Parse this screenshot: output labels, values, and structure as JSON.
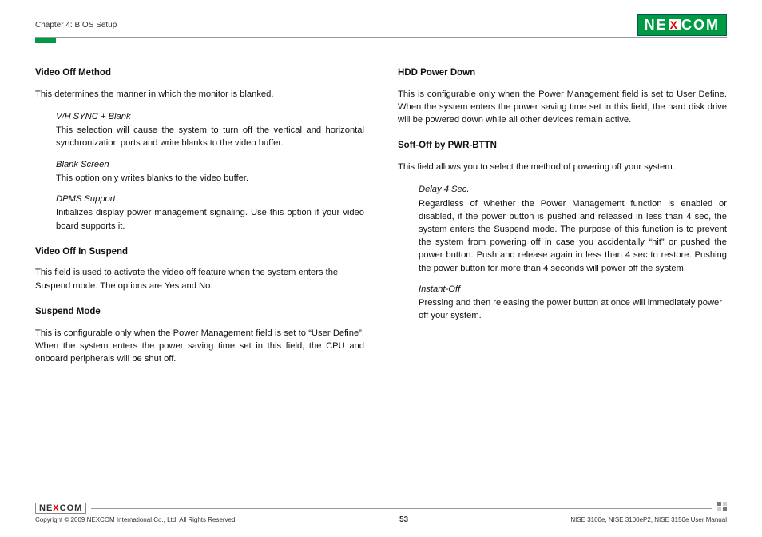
{
  "header": {
    "chapter": "Chapter 4: BIOS Setup",
    "logo_left": "NE",
    "logo_mid": "X",
    "logo_right": "COM"
  },
  "left": {
    "s1_title": "Video Off Method",
    "s1_intro": "This determines the manner in which the monitor is blanked.",
    "s1_o1_t": "V/H SYNC + Blank",
    "s1_o1_b": "This selection will cause the system to turn off the vertical and horizontal synchronization ports and write blanks to the video buffer.",
    "s1_o2_t": "Blank Screen",
    "s1_o2_b": "This option only writes blanks to the video buffer.",
    "s1_o3_t": "DPMS Support",
    "s1_o3_b": "Initializes display power management signaling. Use this option if your video board supports it.",
    "s2_title": "Video Off In Suspend",
    "s2_body": "This field is used to activate the video off feature when the system enters the Suspend mode. The options are Yes and No.",
    "s3_title": "Suspend Mode",
    "s3_body": "This is configurable only when the Power Management field is set to “User Define”. When the system enters the power saving time set in this field, the CPU and onboard peripherals will be shut off."
  },
  "right": {
    "s1_title": "HDD Power Down",
    "s1_body": "This is configurable only when the Power Management field is set to User Define. When the system enters the power saving time set in this field, the hard disk drive will be powered down while all other devices remain active.",
    "s2_title": "Soft-Off by PWR-BTTN",
    "s2_intro": "This field allows you to select the method of powering off your system.",
    "s2_o1_t": "Delay 4 Sec.",
    "s2_o1_b": "Regardless of whether the Power Management function is enabled or disabled, if the power button is pushed and released in less than 4 sec, the system enters the Suspend mode. The purpose of this function is to prevent the system from powering off in case you accidentally “hit” or pushed the power button. Push and release again in less than 4 sec to restore. Pushing the power button for more than 4 seconds will power off the system.",
    "s2_o2_t": "Instant-Off",
    "s2_o2_b": "Pressing and then releasing the power button at once will immediately power off your system."
  },
  "footer": {
    "logo_left": "NE",
    "logo_mid": "X",
    "logo_right": "COM",
    "copyright": "Copyright © 2009 NEXCOM International Co., Ltd. All Rights Reserved.",
    "page": "53",
    "doc": "NISE 3100e, NISE 3100eP2, NISE 3150e User Manual"
  }
}
